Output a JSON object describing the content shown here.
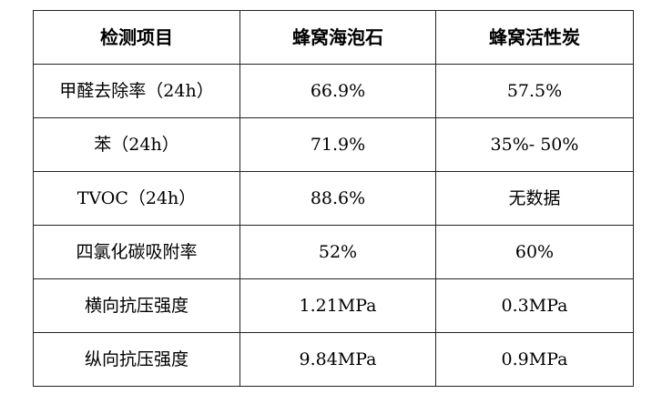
{
  "table": {
    "headers": [
      "检测项目",
      "蜂窝海泡石",
      "蜂窝活性炭"
    ],
    "rows": [
      [
        "甲醛去除率（24h）",
        "66.9%",
        "57.5%"
      ],
      [
        "苯（24h）",
        "71.9%",
        "35%- 50%"
      ],
      [
        "TVOC（24h）",
        "88.6%",
        "无数据"
      ],
      [
        "四氯化碳吸附率",
        "52%",
        "60%"
      ],
      [
        "横向抗压强度",
        "1.21MPa",
        "0.3MPa"
      ],
      [
        "纵向抗压强度",
        "9.84MPa",
        "0.9MPa"
      ]
    ]
  }
}
